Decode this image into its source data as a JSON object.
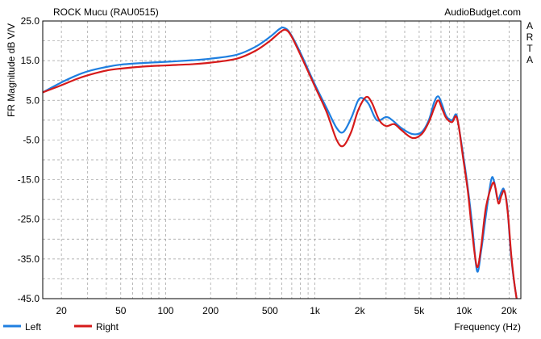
{
  "chart_data": {
    "type": "line",
    "title": "ROCK Mucu (RAU0515)",
    "watermark": "AudioBudget.com",
    "side_label": [
      "A",
      "R",
      "T",
      "A"
    ],
    "xlabel": "Frequency (Hz)",
    "ylabel": "FR Magnitude dB V/V",
    "x_scale": "log",
    "xlim": [
      15,
      24000
    ],
    "ylim": [
      -45,
      25
    ],
    "x_ticks": [
      {
        "value": 20,
        "label": "20"
      },
      {
        "value": 50,
        "label": "50"
      },
      {
        "value": 100,
        "label": "100"
      },
      {
        "value": 200,
        "label": "200"
      },
      {
        "value": 500,
        "label": "500"
      },
      {
        "value": 1000,
        "label": "1k"
      },
      {
        "value": 2000,
        "label": "2k"
      },
      {
        "value": 5000,
        "label": "5k"
      },
      {
        "value": 10000,
        "label": "10k"
      },
      {
        "value": 20000,
        "label": "20k"
      }
    ],
    "y_ticks": [
      {
        "value": 25,
        "label": "25.0"
      },
      {
        "value": 15,
        "label": "15.0"
      },
      {
        "value": 5,
        "label": "5.0"
      },
      {
        "value": -5,
        "label": "-5.0"
      },
      {
        "value": -15,
        "label": "-15.0"
      },
      {
        "value": -25,
        "label": "-25.0"
      },
      {
        "value": -35,
        "label": "-35.0"
      },
      {
        "value": -45,
        "label": "-45.0"
      }
    ],
    "grid": true,
    "legend_position": "bottom-left",
    "series": [
      {
        "name": "Left",
        "color": "#1f7fe0",
        "points": [
          [
            15,
            7.0
          ],
          [
            20,
            9.5
          ],
          [
            25,
            11.2
          ],
          [
            30,
            12.3
          ],
          [
            40,
            13.4
          ],
          [
            50,
            14.0
          ],
          [
            70,
            14.4
          ],
          [
            100,
            14.7
          ],
          [
            150,
            15.1
          ],
          [
            200,
            15.5
          ],
          [
            300,
            16.5
          ],
          [
            400,
            18.5
          ],
          [
            500,
            21.0
          ],
          [
            580,
            23.0
          ],
          [
            620,
            23.3
          ],
          [
            680,
            22.0
          ],
          [
            800,
            17.0
          ],
          [
            1000,
            9.0
          ],
          [
            1200,
            3.0
          ],
          [
            1400,
            -2.0
          ],
          [
            1550,
            -3.0
          ],
          [
            1750,
            0.5
          ],
          [
            1950,
            5.0
          ],
          [
            2100,
            5.5
          ],
          [
            2300,
            4.0
          ],
          [
            2600,
            0.0
          ],
          [
            3000,
            0.8
          ],
          [
            3300,
            0.0
          ],
          [
            3800,
            -2.0
          ],
          [
            4500,
            -3.5
          ],
          [
            5200,
            -3.0
          ],
          [
            5800,
            0.0
          ],
          [
            6300,
            4.5
          ],
          [
            6700,
            6.0
          ],
          [
            7100,
            4.0
          ],
          [
            7600,
            1.0
          ],
          [
            8300,
            0.0
          ],
          [
            8800,
            1.5
          ],
          [
            9100,
            -0.5
          ],
          [
            9700,
            -7.0
          ],
          [
            10500,
            -16.0
          ],
          [
            11300,
            -26.0
          ],
          [
            12200,
            -38.0
          ],
          [
            13000,
            -33.0
          ],
          [
            14000,
            -24.0
          ],
          [
            15200,
            -15.0
          ],
          [
            15900,
            -15.5
          ],
          [
            16800,
            -20.0
          ],
          [
            17800,
            -18.0
          ],
          [
            18500,
            -17.5
          ],
          [
            19500,
            -22.0
          ],
          [
            20500,
            -33.0
          ],
          [
            21500,
            -40.0
          ],
          [
            22500,
            -45.0
          ]
        ]
      },
      {
        "name": "Right",
        "color": "#d61a1a",
        "points": [
          [
            15,
            7.0
          ],
          [
            20,
            8.8
          ],
          [
            25,
            10.3
          ],
          [
            30,
            11.3
          ],
          [
            40,
            12.5
          ],
          [
            50,
            13.0
          ],
          [
            70,
            13.5
          ],
          [
            100,
            13.8
          ],
          [
            150,
            14.1
          ],
          [
            200,
            14.5
          ],
          [
            300,
            15.5
          ],
          [
            400,
            17.5
          ],
          [
            500,
            20.0
          ],
          [
            600,
            22.5
          ],
          [
            650,
            22.6
          ],
          [
            700,
            21.0
          ],
          [
            800,
            16.5
          ],
          [
            1000,
            8.5
          ],
          [
            1200,
            2.0
          ],
          [
            1400,
            -5.0
          ],
          [
            1550,
            -6.5
          ],
          [
            1750,
            -3.0
          ],
          [
            1950,
            2.5
          ],
          [
            2200,
            5.8
          ],
          [
            2400,
            4.5
          ],
          [
            2700,
            0.0
          ],
          [
            3000,
            -1.5
          ],
          [
            3400,
            -1.0
          ],
          [
            3800,
            -2.5
          ],
          [
            4500,
            -4.5
          ],
          [
            5200,
            -3.5
          ],
          [
            5800,
            -0.5
          ],
          [
            6300,
            3.0
          ],
          [
            6700,
            5.0
          ],
          [
            7100,
            3.0
          ],
          [
            7600,
            0.5
          ],
          [
            8300,
            -0.5
          ],
          [
            8800,
            1.0
          ],
          [
            9200,
            -1.5
          ],
          [
            9800,
            -9.0
          ],
          [
            10600,
            -18.0
          ],
          [
            11300,
            -28.0
          ],
          [
            12200,
            -37.0
          ],
          [
            13000,
            -32.0
          ],
          [
            14000,
            -22.0
          ],
          [
            15500,
            -16.0
          ],
          [
            16200,
            -17.0
          ],
          [
            17000,
            -21.0
          ],
          [
            17800,
            -19.0
          ],
          [
            18700,
            -18.0
          ],
          [
            19700,
            -24.0
          ],
          [
            20700,
            -34.0
          ],
          [
            21700,
            -41.0
          ],
          [
            22700,
            -46.0
          ]
        ]
      }
    ]
  }
}
